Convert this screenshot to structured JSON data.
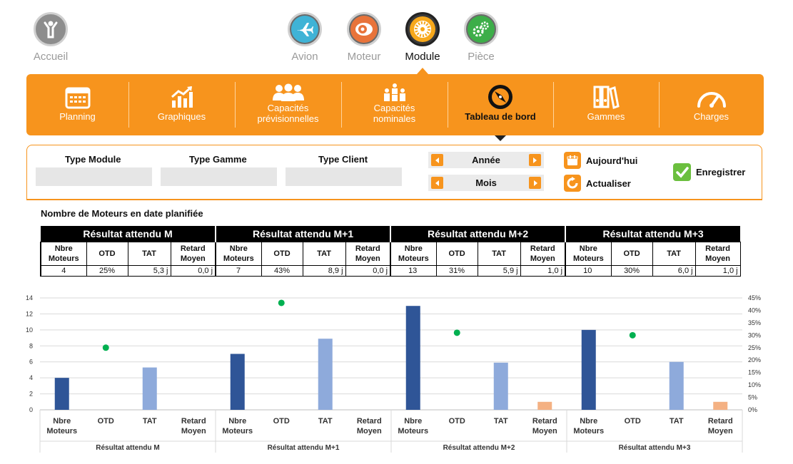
{
  "top_nav": {
    "home_label": "Accueil",
    "items": [
      {
        "label": "Avion",
        "icon": "airplane-icon"
      },
      {
        "label": "Moteur",
        "icon": "engine-icon"
      },
      {
        "label": "Module",
        "icon": "module-icon",
        "active": true
      },
      {
        "label": "Pièce",
        "icon": "gears-icon"
      }
    ]
  },
  "toolbar": {
    "items": [
      {
        "label": "Planning",
        "icon": "calendar-icon"
      },
      {
        "label": "Graphiques",
        "icon": "bar-chart-icon"
      },
      {
        "label": "Capacités prévisionnelles",
        "icon": "people-icon"
      },
      {
        "label": "Capacités nominales",
        "icon": "group-icon"
      },
      {
        "label": "Tableau de bord",
        "icon": "dashboard-compass-icon",
        "active": true
      },
      {
        "label": "Gammes",
        "icon": "binders-icon"
      },
      {
        "label": "Charges",
        "icon": "gauge-icon"
      }
    ]
  },
  "filters": {
    "type_module_label": "Type Module",
    "type_gamme_label": "Type Gamme",
    "type_client_label": "Type Client",
    "year_label": "Année",
    "month_label": "Mois",
    "today_label": "Aujourd'hui",
    "refresh_label": "Actualiser",
    "save_label": "Enregistrer"
  },
  "section_title": "Nombre de Moteurs en date planifiée",
  "table": {
    "groups": [
      "Résultat attendu M",
      "Résultat attendu M+1",
      "Résultat attendu M+2",
      "Résultat attendu M+3"
    ],
    "sub_headers": [
      "Nbre Moteurs",
      "OTD",
      "TAT",
      "Retard Moyen"
    ],
    "rows": [
      [
        "4",
        "25%",
        "5,3 j",
        "0,0 j"
      ],
      [
        "7",
        "43%",
        "8,9 j",
        "0,0 j"
      ],
      [
        "13",
        "31%",
        "5,9 j",
        "1,0 j"
      ],
      [
        "10",
        "30%",
        "6,0 j",
        "1,0 j"
      ]
    ]
  },
  "chart_data": {
    "type": "bar",
    "group_labels": [
      "Résultat attendu M",
      "Résultat attendu M+1",
      "Résultat attendu M+2",
      "Résultat attendu M+3"
    ],
    "categories": [
      "Nbre Moteurs",
      "OTD",
      "TAT",
      "Retard Moyen"
    ],
    "nbre_moteurs": [
      4,
      7,
      13,
      10
    ],
    "tat": [
      5.3,
      8.9,
      5.9,
      6.0
    ],
    "retard_moyen": [
      0.0,
      0.0,
      1.0,
      1.0
    ],
    "otd_percent": [
      25,
      43,
      31,
      30
    ],
    "y_left": {
      "min": 0,
      "max": 14,
      "ticks": [
        0,
        2,
        4,
        6,
        8,
        10,
        12,
        14
      ]
    },
    "y_right": {
      "min": 0,
      "max": 45,
      "ticks": [
        "0%",
        "5%",
        "10%",
        "15%",
        "20%",
        "25%",
        "30%",
        "35%",
        "40%",
        "45%"
      ]
    },
    "colors": {
      "nbre": "#2f5597",
      "tat": "#8eaadb",
      "retard": "#f4b183",
      "otd": "#00b050",
      "grid": "#d9d9d9"
    },
    "grid": true
  }
}
